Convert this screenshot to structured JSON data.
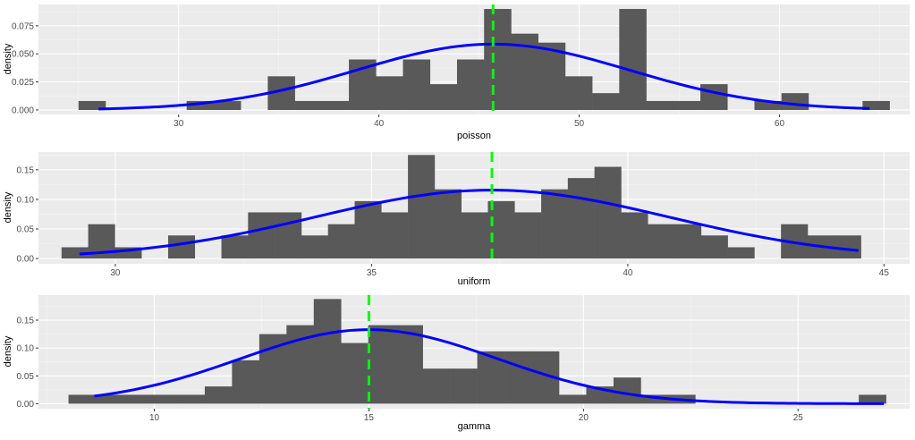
{
  "chart_data": [
    {
      "type": "histogram",
      "xlabel": "poisson",
      "ylabel": "density",
      "xlim": [
        23.0,
        66.5
      ],
      "ylim": [
        -0.004,
        0.094
      ],
      "xticks": [
        30,
        40,
        50,
        60
      ],
      "yticks": [
        0.0,
        0.025,
        0.05,
        0.075
      ],
      "ytick_labels": [
        "0.000",
        "0.025",
        "0.050",
        "0.075"
      ],
      "bin_start": 25,
      "bin_width": 1.35,
      "bin_densities": [
        0.008,
        0.0,
        0.0,
        0.0,
        0.008,
        0.008,
        0.0,
        0.03,
        0.008,
        0.008,
        0.045,
        0.03,
        0.045,
        0.023,
        0.045,
        0.09,
        0.068,
        0.06,
        0.03,
        0.015,
        0.09,
        0.008,
        0.008,
        0.023,
        0.0,
        0.008,
        0.015,
        0.0,
        0.0,
        0.008
      ],
      "normal_fit": {
        "mean": 45.7,
        "sd": 6.8,
        "from": 26,
        "to": 64.5
      },
      "mean_line": 45.7,
      "bar_color": "#595959",
      "curve_color": "#0000ff",
      "mean_line_color": "#00ff00"
    },
    {
      "type": "histogram",
      "xlabel": "uniform",
      "ylabel": "density",
      "xlim": [
        28.5,
        45.5
      ],
      "ylim": [
        -0.009,
        0.18
      ],
      "xticks": [
        30,
        35,
        40,
        45
      ],
      "yticks": [
        0.0,
        0.05,
        0.1,
        0.15
      ],
      "ytick_labels": [
        "0.00",
        "0.05",
        "0.10",
        "0.15"
      ],
      "bin_start": 28.95,
      "bin_width": 0.52,
      "bin_densities": [
        0.019,
        0.058,
        0.019,
        0.0,
        0.039,
        0.0,
        0.039,
        0.078,
        0.078,
        0.039,
        0.058,
        0.097,
        0.078,
        0.175,
        0.117,
        0.078,
        0.097,
        0.078,
        0.117,
        0.136,
        0.155,
        0.078,
        0.058,
        0.058,
        0.039,
        0.019,
        0.0,
        0.058,
        0.039,
        0.039
      ],
      "normal_fit": {
        "mean": 37.35,
        "sd": 3.45,
        "from": 29.3,
        "to": 44.5
      },
      "mean_line": 37.35,
      "bar_color": "#595959",
      "curve_color": "#0000ff",
      "mean_line_color": "#00ff00"
    },
    {
      "type": "histogram",
      "xlabel": "gamma",
      "ylabel": "density",
      "xlim": [
        7.3,
        27.6
      ],
      "ylim": [
        -0.009,
        0.195
      ],
      "xticks": [
        10,
        15,
        20,
        25
      ],
      "yticks": [
        0.0,
        0.05,
        0.1,
        0.15
      ],
      "ytick_labels": [
        "0.00",
        "0.05",
        "0.10",
        "0.15"
      ],
      "bin_start": 8.0,
      "bin_width": 0.635,
      "bin_densities": [
        0.016,
        0.016,
        0.016,
        0.016,
        0.016,
        0.031,
        0.078,
        0.125,
        0.141,
        0.188,
        0.109,
        0.141,
        0.141,
        0.063,
        0.063,
        0.094,
        0.094,
        0.094,
        0.016,
        0.031,
        0.047,
        0.016,
        0.016,
        0.0,
        0.0,
        0.0,
        0.0,
        0.0,
        0.0,
        0.016
      ],
      "normal_fit": {
        "mean": 15.0,
        "sd": 3.0,
        "from": 8.6,
        "to": 27.0
      },
      "mean_line": 15.0,
      "bar_color": "#595959",
      "curve_color": "#0000ff",
      "mean_line_color": "#00ff00"
    }
  ]
}
